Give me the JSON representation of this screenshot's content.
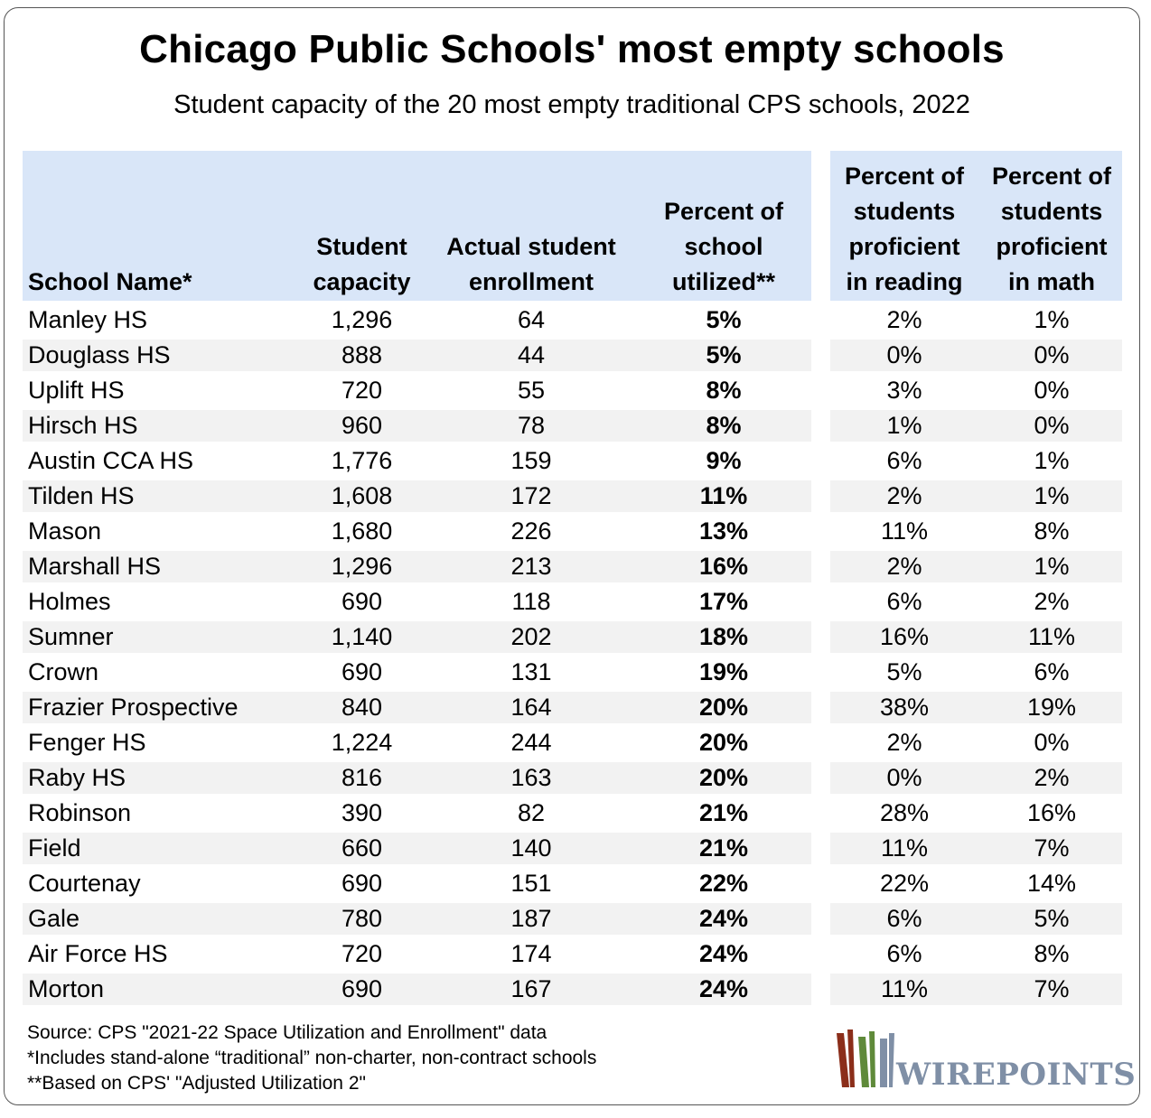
{
  "title": "Chicago Public Schools' most empty schools",
  "subtitle": "Student capacity of the 20 most empty traditional CPS schools, 2022",
  "notes": {
    "source": "Source: CPS \"2021-22 Space Utilization and Enrollment\" data",
    "note1": "*Includes stand-alone “traditional” non-charter, non-contract schools",
    "note2": "**Based on CPS' \"Adjusted Utilization 2\""
  },
  "logo": {
    "text": "WIREPOINTS",
    "icon": "wirepoints-bars-icon"
  },
  "colors": {
    "header_bg": "#d9e6f8",
    "stripe_bg": "#f2f2f2",
    "logo_red": "#8b2e1a",
    "logo_green": "#5f8a3a",
    "logo_blue": "#7f8fa6"
  },
  "chart_data": {
    "type": "table",
    "columns": [
      [
        "School Name*"
      ],
      [
        "Student",
        "capacity"
      ],
      [
        "Actual student",
        "enrollment"
      ],
      [
        "Percent of",
        "school",
        "utilized**"
      ],
      [
        "Percent of",
        "students",
        "proficient",
        "in reading"
      ],
      [
        "Percent of",
        "students",
        "proficient",
        "in math"
      ]
    ],
    "rows": [
      [
        "Manley HS",
        "1,296",
        "64",
        "5%",
        "2%",
        "1%"
      ],
      [
        "Douglass HS",
        "888",
        "44",
        "5%",
        "0%",
        "0%"
      ],
      [
        "Uplift HS",
        "720",
        "55",
        "8%",
        "3%",
        "0%"
      ],
      [
        "Hirsch HS",
        "960",
        "78",
        "8%",
        "1%",
        "0%"
      ],
      [
        "Austin CCA HS",
        "1,776",
        "159",
        "9%",
        "6%",
        "1%"
      ],
      [
        "Tilden HS",
        "1,608",
        "172",
        "11%",
        "2%",
        "1%"
      ],
      [
        "Mason",
        "1,680",
        "226",
        "13%",
        "11%",
        "8%"
      ],
      [
        "Marshall HS",
        "1,296",
        "213",
        "16%",
        "2%",
        "1%"
      ],
      [
        "Holmes",
        "690",
        "118",
        "17%",
        "6%",
        "2%"
      ],
      [
        "Sumner",
        "1,140",
        "202",
        "18%",
        "16%",
        "11%"
      ],
      [
        "Crown",
        "690",
        "131",
        "19%",
        "5%",
        "6%"
      ],
      [
        "Frazier Prospective",
        "840",
        "164",
        "20%",
        "38%",
        "19%"
      ],
      [
        "Fenger HS",
        "1,224",
        "244",
        "20%",
        "2%",
        "0%"
      ],
      [
        "Raby HS",
        "816",
        "163",
        "20%",
        "0%",
        "2%"
      ],
      [
        "Robinson",
        "390",
        "82",
        "21%",
        "28%",
        "16%"
      ],
      [
        "Field",
        "660",
        "140",
        "21%",
        "11%",
        "7%"
      ],
      [
        "Courtenay",
        "690",
        "151",
        "22%",
        "22%",
        "14%"
      ],
      [
        "Gale",
        "780",
        "187",
        "24%",
        "6%",
        "5%"
      ],
      [
        "Air Force HS",
        "720",
        "174",
        "24%",
        "6%",
        "8%"
      ],
      [
        "Morton",
        "690",
        "167",
        "24%",
        "11%",
        "7%"
      ]
    ]
  }
}
